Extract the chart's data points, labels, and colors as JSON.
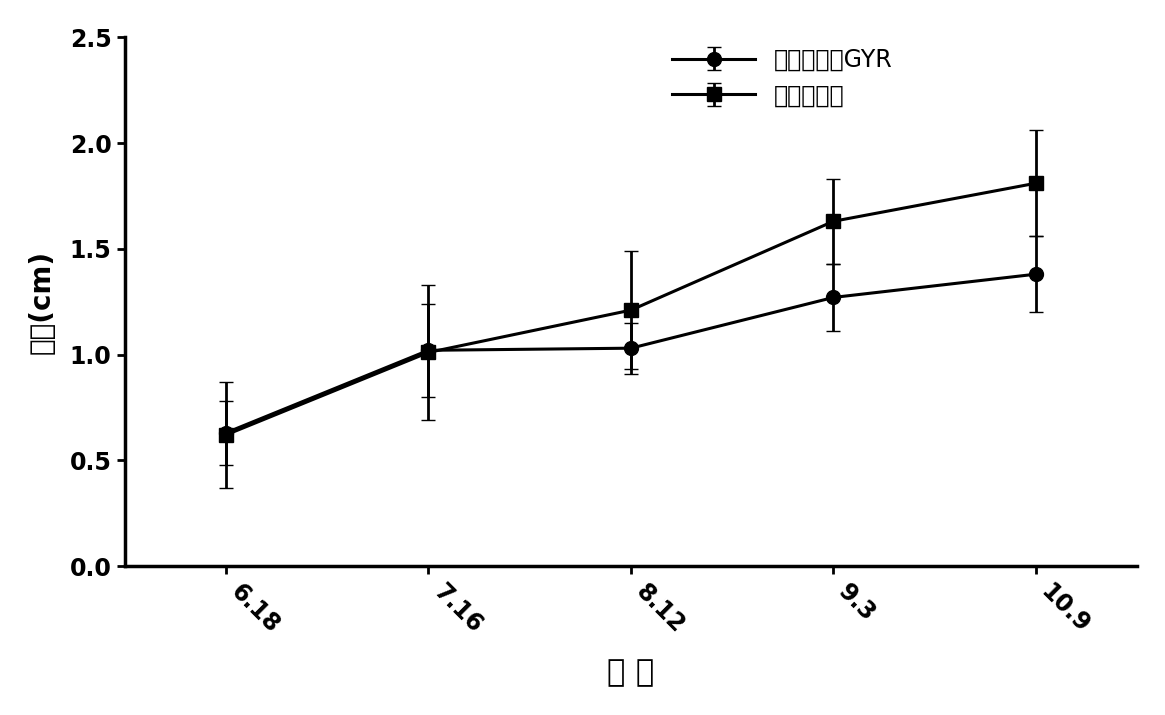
{
  "x_labels": [
    "6.18",
    "7.16",
    "8.12",
    "9.3",
    "10.9"
  ],
  "x_values": [
    0,
    1,
    2,
    3,
    4
  ],
  "series1_name": "转基因青蔧GYR",
  "series1_y": [
    0.63,
    1.02,
    1.03,
    1.27,
    1.38
  ],
  "series1_yerr": [
    0.15,
    0.22,
    0.12,
    0.16,
    0.18
  ],
  "series1_marker": "o",
  "series2_name": "野生型受体",
  "series2_y": [
    0.62,
    1.01,
    1.21,
    1.63,
    1.81
  ],
  "series2_yerr": [
    0.25,
    0.32,
    0.28,
    0.2,
    0.25
  ],
  "series2_marker": "s",
  "ylim": [
    0.0,
    2.5
  ],
  "yticks": [
    0.0,
    0.5,
    1.0,
    1.5,
    2.0,
    2.5
  ],
  "ylabel": "茎粗(cm)",
  "xlabel": "日 期",
  "line_color": "#000000",
  "background_color": "#ffffff",
  "label_fontsize": 20,
  "tick_fontsize": 17,
  "legend_fontsize": 17,
  "marker_size": 10,
  "line_width": 2.2,
  "capsize": 5,
  "elinewidth": 2.0,
  "xtick_rotation": -45
}
